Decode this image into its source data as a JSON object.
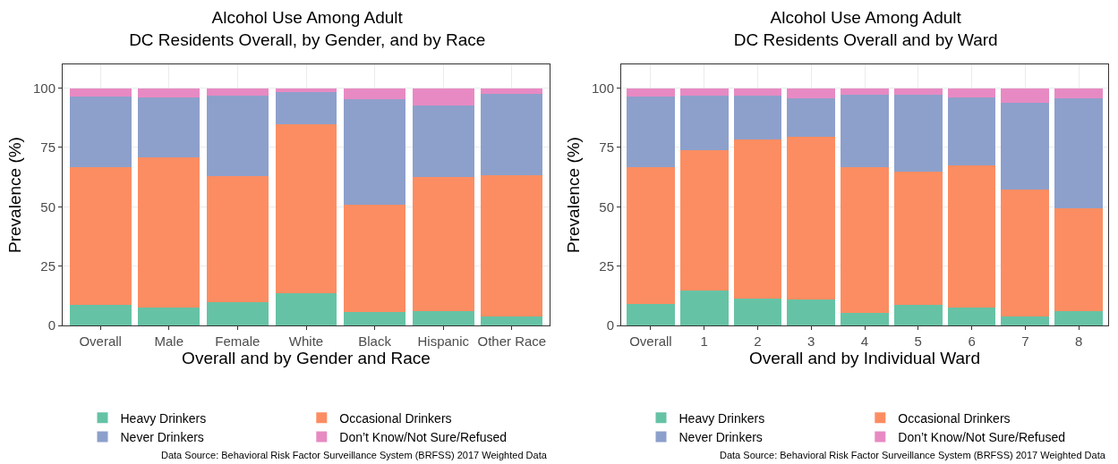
{
  "chart_data": [
    {
      "type": "bar",
      "stacked": true,
      "title": "Alcohol Use Among Adult\nDC Residents Overall, by Gender, and by Race",
      "xlabel": "Overall and by Gender and Race",
      "ylabel": "Prevalence (%)",
      "categories": [
        "Overall",
        "Male",
        "Female",
        "White",
        "Black",
        "Hispanic",
        "Other Race"
      ],
      "ylim": [
        0,
        110
      ],
      "yticks": [
        0,
        25,
        50,
        75,
        100
      ],
      "grid": true,
      "legend": "bottom",
      "annotations": [
        "Data Source: Behavioral Risk Factor Surveillance System (BRFSS) 2017 Weighted Data"
      ],
      "series": [
        {
          "name": "Heavy Drinkers",
          "color": "#66c2a5",
          "values": [
            8.6,
            7.7,
            9.8,
            13.7,
            5.5,
            5.9,
            3.7
          ]
        },
        {
          "name": "Occasional Drinkers",
          "color": "#fc8d62",
          "values": [
            57.9,
            63.1,
            53.2,
            71.1,
            45.2,
            56.7,
            59.7
          ]
        },
        {
          "name": "Never Drinkers",
          "color": "#8da0cb",
          "values": [
            29.8,
            25.1,
            33.7,
            13.4,
            44.7,
            30.2,
            34.1
          ]
        },
        {
          "name": "Don’t Know/Not Sure/Refused",
          "color": "#e78ac3",
          "values": [
            3.7,
            4.1,
            3.3,
            1.8,
            4.6,
            7.2,
            2.5
          ]
        }
      ]
    },
    {
      "type": "bar",
      "stacked": true,
      "title": "Alcohol Use Among Adult\nDC Residents Overall and by Ward",
      "xlabel": "Overall and by Individual Ward",
      "ylabel": "Prevalence (%)",
      "categories": [
        "Overall",
        "1",
        "2",
        "3",
        "4",
        "5",
        "6",
        "7",
        "8"
      ],
      "ylim": [
        0,
        110
      ],
      "yticks": [
        0,
        25,
        50,
        75,
        100
      ],
      "grid": true,
      "legend": "bottom",
      "annotations": [
        "Data Source: Behavioral Risk Factor Surveillance System (BRFSS) 2017 Weighted Data"
      ],
      "series": [
        {
          "name": "Heavy Drinkers",
          "color": "#66c2a5",
          "values": [
            9.0,
            14.7,
            11.4,
            11.0,
            5.1,
            8.7,
            7.5,
            3.6,
            5.9
          ]
        },
        {
          "name": "Occasional Drinkers",
          "color": "#fc8d62",
          "values": [
            57.5,
            59.0,
            67.0,
            68.4,
            61.4,
            56.1,
            60.1,
            53.7,
            43.6
          ]
        },
        {
          "name": "Never Drinkers",
          "color": "#8da0cb",
          "values": [
            30.1,
            23.2,
            18.5,
            16.2,
            30.8,
            32.5,
            28.6,
            36.4,
            46.1
          ]
        },
        {
          "name": "Don’t Know/Not Sure/Refused",
          "color": "#e78ac3",
          "values": [
            3.4,
            2.8,
            3.1,
            4.4,
            2.7,
            2.7,
            3.8,
            6.0,
            4.4
          ]
        }
      ]
    }
  ]
}
